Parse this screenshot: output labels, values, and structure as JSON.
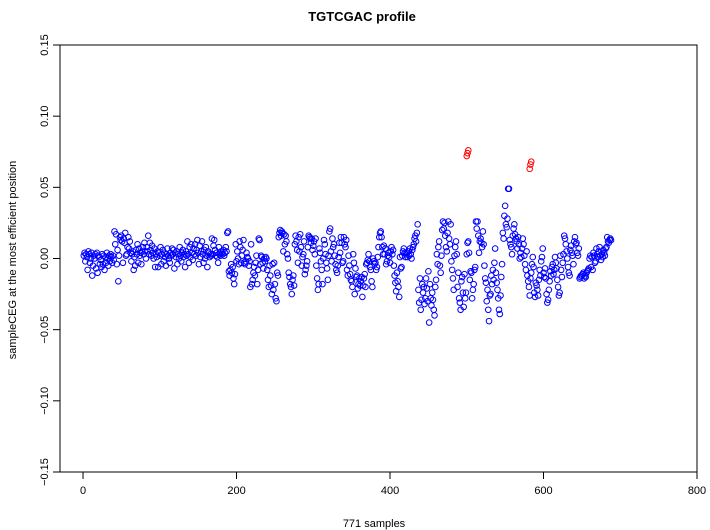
{
  "chart_data": {
    "type": "scatter",
    "title": "TGTCGAC profile",
    "xlabel": "771 samples",
    "ylabel": "sampleCEG at the most efficient position",
    "xlim": [
      -30,
      800
    ],
    "ylim": [
      -0.15,
      0.15
    ],
    "xticks": [
      0,
      200,
      400,
      600,
      800
    ],
    "yticks": [
      -0.15,
      -0.1,
      -0.05,
      0.0,
      0.05,
      0.1,
      0.15
    ],
    "xtick_labels": [
      "0",
      "200",
      "400",
      "600",
      "800"
    ],
    "ytick_labels": [
      "−0.15",
      "−0.10",
      "−0.05",
      "0.00",
      "0.05",
      "0.10",
      "0.15"
    ],
    "grid": false,
    "legend": "none",
    "colors": {
      "normal": "#0000ff",
      "highlight": "#ff0000"
    },
    "series": [
      {
        "values_start_x": 1,
        "values": [
          0.002,
          0.004,
          -0.002,
          0.003,
          0.001,
          -0.008,
          0.005,
          0.003,
          -0.003,
          0.0,
          0.004,
          -0.012,
          -0.005,
          0.002,
          0.0,
          0.003,
          -0.007,
          0.004,
          -0.01,
          0.002,
          0.001,
          -0.004,
          -0.001,
          -0.006,
          0.003,
          -0.004,
          0.002,
          -0.008,
          0.001,
          -0.003,
          0.004,
          0.0,
          -0.005,
          0.002,
          -0.002,
          0.003,
          0.001,
          -0.003,
          0.002,
          -0.001,
          0.019,
          0.01,
          0.017,
          -0.004,
          0.006,
          -0.016,
          0.002,
          0.015,
          0.013,
          0.016,
          0.012,
          -0.003,
          0.014,
          0.011,
          0.018,
          0.002,
          0.003,
          0.008,
          0.015,
          0.007,
          0.012,
          0.004,
          -0.002,
          0.003,
          0.005,
          -0.008,
          0.001,
          -0.005,
          0.006,
          0.003,
          0.01,
          -0.003,
          0.007,
          0.002,
          0.004,
          -0.004,
          0.005,
          0.008,
          0.003,
          0.011,
          0.005,
          0.0,
          0.008,
          0.005,
          0.016,
          0.003,
          0.011,
          0.006,
          0.002,
          0.009,
          0.004,
          0.0,
          0.007,
          -0.006,
          0.003,
          0.001,
          0.005,
          -0.006,
          0.004,
          0.002,
          0.008,
          -0.004,
          0.003,
          0.006,
          -0.002,
          0.004,
          0.001,
          -0.005,
          0.003,
          0.007,
          0.002,
          0.0,
          -0.003,
          0.004,
          0.002,
          0.007,
          0.003,
          0.006,
          -0.007,
          0.004,
          0.001,
          0.005,
          -0.004,
          0.003,
          0.0,
          0.008,
          0.002,
          -0.002,
          0.004,
          0.006,
          0.001,
          0.003,
          -0.006,
          0.005,
          0.002,
          0.012,
          0.003,
          -0.003,
          0.008,
          0.001,
          0.01,
          0.004,
          -0.001,
          0.007,
          0.003,
          0.01,
          0.002,
          0.006,
          0.013,
          0.004,
          -0.004,
          0.009,
          0.001,
          0.005,
          0.012,
          0.003,
          -0.003,
          0.006,
          0.0,
          0.008,
          0.002,
          -0.006,
          0.005,
          0.004,
          0.001,
          0.003,
          0.002,
          0.014,
          0.003,
          0.009,
          0.013,
          0.006,
          0.002,
          0.004,
          0.001,
          -0.003,
          0.008,
          0.003,
          0.002,
          0.005,
          0.004,
          0.003,
          0.006,
          0.002,
          0.004,
          0.008,
          0.005,
          0.018,
          0.019,
          -0.009,
          -0.012,
          -0.008,
          -0.004,
          -0.01,
          -0.006,
          -0.014,
          -0.018,
          -0.011,
          0.01,
          -0.002,
          0.005,
          0.0,
          -0.004,
          0.012,
          0.008,
          -0.003,
          0.002,
          0.006,
          0.013,
          -0.003,
          -0.004,
          -0.002,
          0.004,
          0.001,
          0.0,
          -0.005,
          -0.002,
          -0.02,
          0.01,
          -0.018,
          -0.015,
          -0.01,
          -0.006,
          -0.012,
          -0.003,
          0.002,
          -0.018,
          -0.008,
          0.014,
          0.013,
          -0.004,
          0.002,
          0.001,
          -0.003,
          -0.007,
          0.0,
          -0.002,
          0.001,
          0.0,
          -0.008,
          -0.015,
          -0.02,
          -0.005,
          -0.012,
          -0.019,
          -0.025,
          -0.004,
          -0.022,
          -0.003,
          -0.018,
          -0.028,
          -0.03,
          -0.01,
          -0.012,
          0.015,
          0.018,
          0.02,
          0.016,
          0.019,
          0.018,
          0.005,
          0.017,
          0.01,
          0.016,
          0.012,
          0.003,
          0.0,
          -0.01,
          -0.013,
          -0.018,
          -0.02,
          -0.025,
          -0.015,
          -0.012,
          -0.019,
          0.01,
          0.016,
          0.012,
          0.006,
          -0.003,
          0.015,
          0.005,
          0.017,
          0.008,
          -0.005,
          0.001,
          0.003,
          0.012,
          -0.011,
          -0.008,
          -0.005,
          -0.002,
          0.008,
          0.016,
          0.015,
          0.014,
          0.011,
          0.014,
          0.006,
          0.009,
          0.012,
          0.003,
          0.014,
          -0.005,
          -0.014,
          -0.022,
          -0.018,
          0.007,
          0.004,
          -0.002,
          -0.008,
          -0.018,
          0.0,
          0.013,
          0.01,
          0.003,
          -0.003,
          -0.007,
          -0.015,
          0.002,
          0.019,
          0.021,
          0.005,
          -0.002,
          0.014,
          0.008,
          0.01,
          0.002,
          -0.004,
          -0.008,
          -0.01,
          -0.005,
          0.001,
          0.011,
          0.004,
          0.015,
          0.011,
          -0.003,
          -0.002,
          0.015,
          0.01,
          0.008,
          0.013,
          -0.008,
          -0.012,
          0.002,
          -0.005,
          -0.011,
          -0.015,
          -0.016,
          -0.02,
          0.003,
          -0.003,
          -0.025,
          -0.007,
          -0.013,
          -0.012,
          -0.021,
          -0.018,
          -0.014,
          -0.019,
          -0.016,
          -0.013,
          -0.027,
          -0.019,
          -0.014,
          -0.011,
          -0.02,
          -0.004,
          -0.003,
          -0.001,
          0.003,
          -0.002,
          -0.006,
          -0.008,
          -0.016,
          -0.02,
          0.0,
          -0.002,
          -0.004,
          -0.003,
          -0.008,
          -0.006,
          0.001,
          0.008,
          0.015,
          0.018,
          0.019,
          0.015,
          0.008,
          0.003,
          0.009,
          0.003,
          0.007,
          -0.004,
          -0.002,
          0.002,
          0.004,
          0.001,
          -0.003,
          0.005,
          0.008,
          0.003,
          0.006,
          -0.005,
          -0.012,
          -0.017,
          -0.023,
          -0.01,
          -0.016,
          -0.02,
          -0.027,
          0.001,
          -0.007,
          -0.006,
          0.002,
          0.005,
          0.007,
          0.004,
          0.001,
          0.003,
          0.004,
          0.001,
          0.005,
          0.002,
          0.007,
          0.003,
          0.0,
          0.006,
          0.008,
          0.01,
          0.014,
          0.016,
          0.012,
          0.018,
          0.024,
          -0.022,
          -0.031,
          -0.014,
          -0.036,
          -0.029,
          -0.018,
          -0.024,
          -0.02,
          -0.032,
          -0.028,
          -0.014,
          -0.021,
          -0.03,
          -0.009,
          -0.045,
          -0.018,
          -0.028,
          -0.033,
          -0.024,
          -0.029,
          -0.036,
          -0.04,
          -0.02,
          -0.015,
          0.003,
          -0.004,
          0.008,
          0.012,
          -0.005,
          -0.01,
          0.002,
          0.02,
          0.026,
          0.021,
          0.025,
          0.016,
          0.008,
          0.005,
          0.018,
          0.026,
          0.014,
          0.01,
          0.024,
          -0.002,
          -0.008,
          -0.014,
          -0.022,
          0.002,
          0.008,
          0.012,
          0.003,
          -0.02,
          -0.01,
          -0.028,
          -0.031,
          -0.036,
          -0.016,
          -0.013,
          -0.024,
          -0.034,
          -0.011,
          -0.028,
          -0.024,
          0.003,
          0.011,
          0.012,
          0.004,
          -0.015,
          -0.009,
          -0.01,
          -0.028,
          -0.022,
          -0.018,
          -0.008,
          -0.006,
          0.026,
          0.021,
          0.026,
          0.016,
          0.004,
          0.012,
          0.014,
          0.011,
          0.008,
          0.019,
          0.01,
          -0.005,
          -0.014,
          -0.017,
          -0.03,
          -0.022,
          -0.036,
          -0.044,
          -0.026,
          -0.025,
          -0.012,
          -0.018,
          -0.008,
          -0.015,
          -0.003,
          0.007,
          -0.01,
          -0.017,
          -0.022,
          -0.028,
          -0.036,
          -0.039,
          -0.026,
          -0.013,
          -0.004,
          0.018,
          0.014,
          0.03,
          0.037,
          0.024,
          0.022,
          0.028,
          0.049,
          0.049,
          0.013,
          0.01,
          0.008,
          0.003,
          0.016,
          0.021,
          0.024,
          0.017,
          0.014,
          0.012,
          0.007,
          0.015,
          0.01,
          0.0,
          0.004,
          0.001,
          0.007,
          0.014,
          0.01,
          0.002,
          -0.004,
          -0.008,
          0.005,
          -0.012,
          -0.016,
          -0.02,
          -0.026,
          -0.014,
          -0.01,
          -0.004,
          0.001,
          -0.006,
          -0.024,
          -0.027,
          -0.017,
          -0.019,
          -0.022,
          -0.026,
          -0.015,
          -0.008,
          -0.012,
          -0.002,
          0.001,
          0.007,
          -0.01,
          -0.013,
          -0.007,
          -0.014,
          -0.025,
          -0.031,
          -0.029,
          -0.022,
          -0.016,
          -0.009,
          -0.012,
          -0.006,
          -0.004,
          -0.011,
          -0.008,
          0.001,
          -0.003,
          -0.007,
          -0.015,
          -0.02,
          -0.026,
          -0.024,
          0.002,
          -0.008,
          -0.013,
          -0.003,
          0.003,
          0.016,
          0.014,
          0.01,
          0.005,
          0.0,
          -0.006,
          -0.01,
          -0.012,
          0.006,
          0.009,
          0.004,
          0.002,
          -0.004,
          0.012,
          0.015,
          0.01,
          0.011,
          0.004,
          0.002,
          0.007,
          -0.014,
          -0.013,
          -0.012,
          -0.012,
          -0.011,
          -0.01,
          -0.014,
          -0.012,
          -0.013,
          -0.01,
          -0.009,
          -0.008,
          -0.007,
          0.0,
          0.002,
          -0.006,
          0.001,
          -0.008,
          0.004,
          0.002,
          -0.003,
          -0.002,
          0.007,
          0.003,
          0.001,
          0.005,
          0.008,
          0.002,
          -0.001,
          0.003,
          0.001,
          0.006,
          0.004,
          0.002,
          0.007,
          0.008,
          0.015,
          0.012,
          0.011,
          0.013,
          0.014,
          0.013
        ]
      },
      {
        "points": [
          {
            "x": 500,
            "y": 0.072
          },
          {
            "x": 501,
            "y": 0.074
          },
          {
            "x": 502,
            "y": 0.076
          },
          {
            "x": 582,
            "y": 0.063
          },
          {
            "x": 583,
            "y": 0.066
          },
          {
            "x": 584,
            "y": 0.068
          }
        ]
      }
    ]
  }
}
